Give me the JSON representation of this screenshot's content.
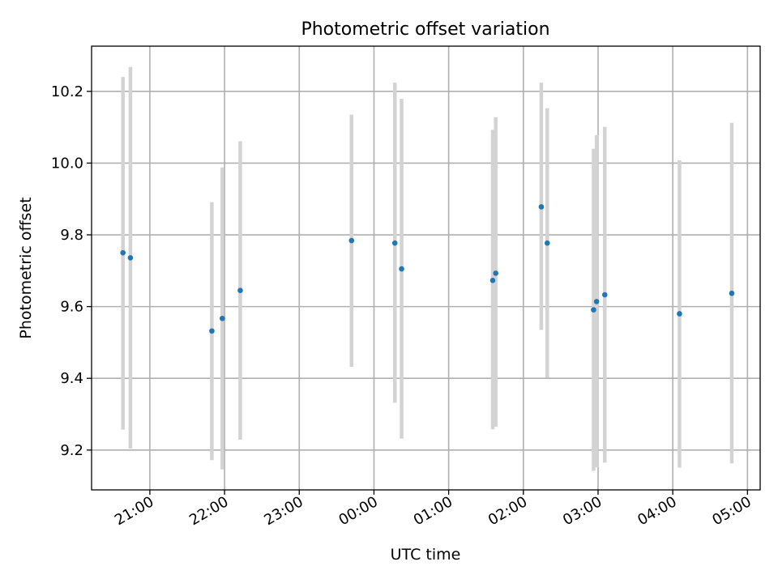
{
  "chart_data": {
    "type": "scatter",
    "title": "Photometric offset variation",
    "xlabel": "UTC time",
    "ylabel": "Photometric offset",
    "x_tick_labels": [
      "21:00",
      "22:00",
      "23:00",
      "00:00",
      "01:00",
      "02:00",
      "03:00",
      "04:00",
      "05:00"
    ],
    "x_tick_hours": [
      21,
      22,
      23,
      24,
      25,
      26,
      27,
      28,
      29
    ],
    "y_ticks": [
      9.2,
      9.4,
      9.6,
      9.8,
      10.0,
      10.2
    ],
    "y_tick_labels": [
      "9.2",
      "9.4",
      "9.6",
      "9.8",
      "10.0",
      "10.2"
    ],
    "xlim_hours": [
      20.22,
      29.17
    ],
    "ylim": [
      9.089,
      10.326
    ],
    "grid": true,
    "colors": {
      "point": "#1f77b4",
      "error_bar": "#d3d3d3",
      "grid": "#b0b0b0"
    },
    "series": [
      {
        "points": [
          {
            "t": "20:38",
            "hours": 20.64,
            "y": 9.75,
            "ylow": 9.257,
            "yhigh": 10.24
          },
          {
            "t": "20:44",
            "hours": 20.74,
            "y": 9.736,
            "ylow": 9.204,
            "yhigh": 10.268
          },
          {
            "t": "21:50",
            "hours": 21.83,
            "y": 9.532,
            "ylow": 9.172,
            "yhigh": 9.891
          },
          {
            "t": "21:58",
            "hours": 21.97,
            "y": 9.567,
            "ylow": 9.146,
            "yhigh": 9.988
          },
          {
            "t": "22:13",
            "hours": 22.21,
            "y": 9.645,
            "ylow": 9.229,
            "yhigh": 10.061
          },
          {
            "t": "23:42",
            "hours": 23.7,
            "y": 9.784,
            "ylow": 9.432,
            "yhigh": 10.135
          },
          {
            "t": "00:17",
            "hours": 24.28,
            "y": 9.777,
            "ylow": 9.332,
            "yhigh": 10.224
          },
          {
            "t": "00:22",
            "hours": 24.37,
            "y": 9.705,
            "ylow": 9.232,
            "yhigh": 10.179
          },
          {
            "t": "01:35",
            "hours": 25.59,
            "y": 9.673,
            "ylow": 9.258,
            "yhigh": 10.093
          },
          {
            "t": "01:37",
            "hours": 25.63,
            "y": 9.693,
            "ylow": 9.265,
            "yhigh": 10.128
          },
          {
            "t": "02:14",
            "hours": 26.24,
            "y": 9.878,
            "ylow": 9.535,
            "yhigh": 10.224
          },
          {
            "t": "02:19",
            "hours": 26.32,
            "y": 9.777,
            "ylow": 9.402,
            "yhigh": 10.153
          },
          {
            "t": "02:56",
            "hours": 26.94,
            "y": 9.591,
            "ylow": 9.142,
            "yhigh": 10.04
          },
          {
            "t": "02:59",
            "hours": 26.98,
            "y": 9.614,
            "ylow": 9.152,
            "yhigh": 10.078
          },
          {
            "t": "03:05",
            "hours": 27.09,
            "y": 9.633,
            "ylow": 9.165,
            "yhigh": 10.101
          },
          {
            "t": "04:05",
            "hours": 28.09,
            "y": 9.58,
            "ylow": 9.151,
            "yhigh": 10.008
          },
          {
            "t": "04:47",
            "hours": 28.79,
            "y": 9.637,
            "ylow": 9.163,
            "yhigh": 10.112
          }
        ]
      }
    ]
  }
}
